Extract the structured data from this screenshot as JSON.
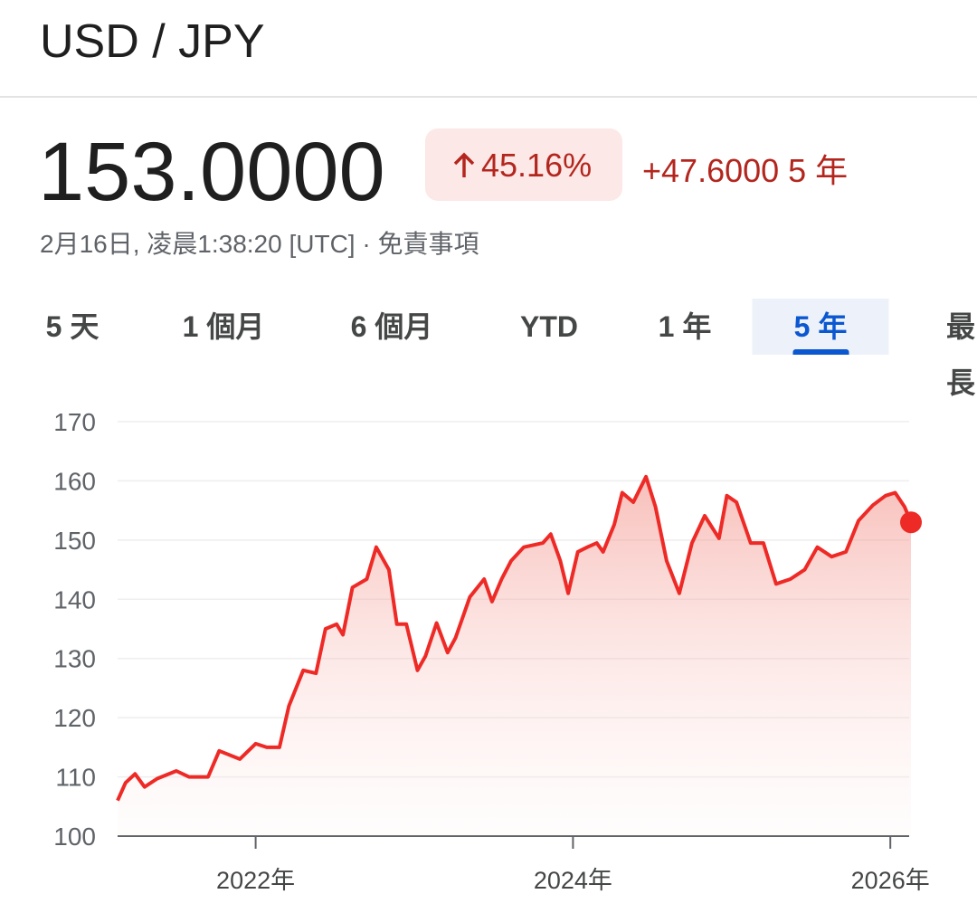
{
  "header": {
    "title": "USD / JPY"
  },
  "quote": {
    "price": "153.0000",
    "change_percent": "45.16%",
    "change": "+47.6000 5 年",
    "timestamp": "2月16日, 凌晨1:38:20 [UTC]",
    "separator": "·",
    "disclaimer": "免責事項"
  },
  "tabs": {
    "items": [
      "5 天",
      "1 個月",
      "6 個月",
      "YTD",
      "1 年",
      "5 年",
      "最長"
    ],
    "selected": 5
  },
  "chart_data": {
    "type": "line",
    "x": [
      2021.13,
      2021.18,
      2021.24,
      2021.3,
      2021.38,
      2021.5,
      2021.58,
      2021.7,
      2021.77,
      2021.9,
      2022.0,
      2022.07,
      2022.15,
      2022.21,
      2022.3,
      2022.38,
      2022.44,
      2022.51,
      2022.55,
      2022.61,
      2022.7,
      2022.76,
      2022.84,
      2022.89,
      2022.95,
      2023.02,
      2023.07,
      2023.14,
      2023.21,
      2023.26,
      2023.35,
      2023.44,
      2023.49,
      2023.55,
      2023.61,
      2023.69,
      2023.81,
      2023.86,
      2023.92,
      2023.97,
      2024.03,
      2024.09,
      2024.15,
      2024.19,
      2024.26,
      2024.31,
      2024.38,
      2024.46,
      2024.52,
      2024.59,
      2024.67,
      2024.75,
      2024.83,
      2024.92,
      2024.97,
      2025.03,
      2025.12,
      2025.2,
      2025.28,
      2025.37,
      2025.46,
      2025.54,
      2025.63,
      2025.72,
      2025.8,
      2025.89,
      2025.97,
      2026.03,
      2026.09,
      2026.13
    ],
    "series": [
      {
        "color": "#ee2a26",
        "values": [
          106,
          109,
          110.5,
          108.3,
          109.7,
          111,
          110,
          110,
          114.4,
          113,
          115.6,
          115,
          115,
          122,
          128,
          127.5,
          135,
          135.8,
          134,
          142,
          143.4,
          148.8,
          145,
          135.8,
          135.8,
          128,
          130.4,
          136,
          131,
          133.5,
          140.4,
          143.4,
          139.6,
          143.4,
          146.5,
          148.8,
          149.5,
          151,
          146.5,
          141,
          148,
          148.8,
          149.5,
          148,
          152.6,
          158,
          156.4,
          160.7,
          155.6,
          146.5,
          141,
          149.5,
          154.1,
          150.3,
          157.5,
          156.4,
          149.5,
          149.5,
          142.6,
          143.4,
          145,
          148.8,
          147.2,
          148,
          153.3,
          155.9,
          157.5,
          158,
          155.6,
          153
        ]
      }
    ],
    "xlim": [
      2021.13,
      2026.13
    ],
    "xticks": [
      {
        "value": 2022,
        "label": "2022年"
      },
      {
        "value": 2024,
        "label": "2024年"
      },
      {
        "value": 2026,
        "label": "2026年"
      }
    ],
    "ylim": [
      100,
      170
    ],
    "yticks": [
      100,
      110,
      120,
      130,
      140,
      150,
      160,
      170
    ],
    "grid": true
  }
}
